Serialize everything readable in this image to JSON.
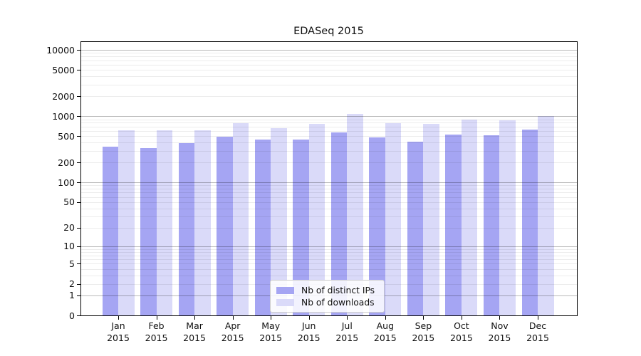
{
  "chart_data": {
    "type": "bar",
    "title": "EDASeq 2015",
    "x_months": [
      "Jan",
      "Feb",
      "Mar",
      "Apr",
      "May",
      "Jun",
      "Jul",
      "Aug",
      "Sep",
      "Oct",
      "Nov",
      "Dec"
    ],
    "x_year": "2015",
    "categories": [
      "Jan 2015",
      "Feb 2015",
      "Mar 2015",
      "Apr 2015",
      "May 2015",
      "Jun 2015",
      "Jul 2015",
      "Aug 2015",
      "Sep 2015",
      "Oct 2015",
      "Nov 2015",
      "Dec 2015"
    ],
    "series": [
      {
        "name": "Nb of distinct IPs",
        "color": "#a5a5f3",
        "values": [
          347,
          331,
          397,
          495,
          445,
          449,
          574,
          483,
          413,
          525,
          520,
          625
        ]
      },
      {
        "name": "Nb of downloads",
        "color": "#dadaf9",
        "values": [
          613,
          610,
          619,
          793,
          656,
          761,
          1084,
          780,
          760,
          896,
          861,
          1014
        ]
      }
    ],
    "y_ticks": [
      0,
      1,
      2,
      5,
      10,
      20,
      50,
      100,
      200,
      500,
      1000,
      2000,
      5000,
      10000
    ],
    "y_scale": "log10(value+1)",
    "ylim": [
      0,
      13500
    ],
    "grid": "on",
    "legend_position": "bottom-center",
    "colors": {
      "major_grid": "rgba(0,0,0,0.27)",
      "minor_grid": "rgba(0,0,0,0.075)",
      "axis": "#000000",
      "text": "#111111"
    }
  }
}
